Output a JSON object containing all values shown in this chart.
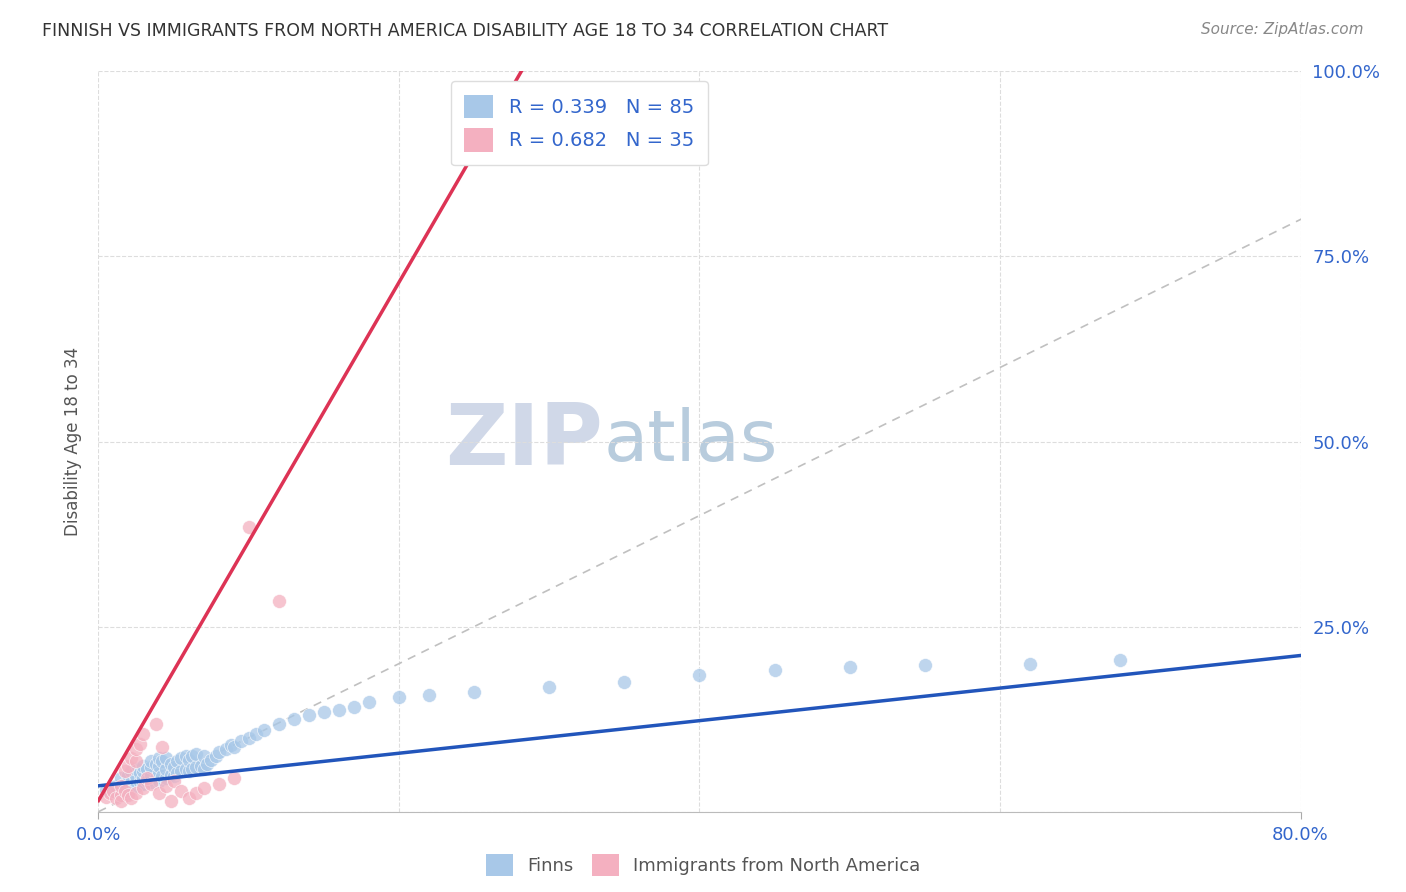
{
  "title": "FINNISH VS IMMIGRANTS FROM NORTH AMERICA DISABILITY AGE 18 TO 34 CORRELATION CHART",
  "source": "Source: ZipAtlas.com",
  "ylabel": "Disability Age 18 to 34",
  "xlim": [
    0.0,
    0.8
  ],
  "ylim": [
    0.0,
    1.0
  ],
  "finn_R": 0.339,
  "finn_N": 85,
  "immig_R": 0.682,
  "immig_N": 35,
  "blue_color": "#a8c8e8",
  "pink_color": "#f4b0c0",
  "blue_line_color": "#2255bb",
  "pink_line_color": "#dd3355",
  "legend_text_color": "#3366cc",
  "watermark_zip": "ZIP",
  "watermark_atlas": "atlas",
  "watermark_zip_color": "#d0d8e8",
  "watermark_atlas_color": "#b8ccdd",
  "finn_x": [
    0.005,
    0.01,
    0.012,
    0.015,
    0.015,
    0.018,
    0.02,
    0.02,
    0.022,
    0.022,
    0.025,
    0.025,
    0.025,
    0.025,
    0.028,
    0.028,
    0.03,
    0.03,
    0.03,
    0.03,
    0.032,
    0.032,
    0.035,
    0.035,
    0.035,
    0.035,
    0.038,
    0.038,
    0.04,
    0.04,
    0.04,
    0.04,
    0.042,
    0.042,
    0.045,
    0.045,
    0.045,
    0.048,
    0.048,
    0.05,
    0.05,
    0.052,
    0.052,
    0.055,
    0.055,
    0.058,
    0.058,
    0.06,
    0.06,
    0.062,
    0.062,
    0.065,
    0.065,
    0.068,
    0.07,
    0.07,
    0.072,
    0.075,
    0.078,
    0.08,
    0.085,
    0.088,
    0.09,
    0.095,
    0.1,
    0.105,
    0.11,
    0.12,
    0.13,
    0.14,
    0.15,
    0.16,
    0.17,
    0.18,
    0.2,
    0.22,
    0.25,
    0.3,
    0.35,
    0.4,
    0.45,
    0.5,
    0.55,
    0.62,
    0.68
  ],
  "finn_y": [
    0.03,
    0.028,
    0.035,
    0.032,
    0.045,
    0.038,
    0.025,
    0.05,
    0.04,
    0.055,
    0.035,
    0.042,
    0.048,
    0.058,
    0.04,
    0.052,
    0.038,
    0.045,
    0.055,
    0.062,
    0.042,
    0.058,
    0.04,
    0.05,
    0.06,
    0.068,
    0.045,
    0.065,
    0.042,
    0.052,
    0.062,
    0.072,
    0.048,
    0.068,
    0.045,
    0.058,
    0.072,
    0.05,
    0.065,
    0.048,
    0.06,
    0.052,
    0.068,
    0.055,
    0.072,
    0.058,
    0.075,
    0.055,
    0.07,
    0.058,
    0.075,
    0.06,
    0.078,
    0.062,
    0.058,
    0.075,
    0.065,
    0.07,
    0.075,
    0.08,
    0.085,
    0.09,
    0.088,
    0.095,
    0.1,
    0.105,
    0.11,
    0.118,
    0.125,
    0.13,
    0.135,
    0.138,
    0.142,
    0.148,
    0.155,
    0.158,
    0.162,
    0.168,
    0.175,
    0.185,
    0.192,
    0.195,
    0.198,
    0.2,
    0.205
  ],
  "immig_x": [
    0.005,
    0.008,
    0.01,
    0.012,
    0.015,
    0.015,
    0.015,
    0.018,
    0.018,
    0.02,
    0.02,
    0.022,
    0.022,
    0.025,
    0.025,
    0.025,
    0.028,
    0.03,
    0.03,
    0.032,
    0.035,
    0.038,
    0.04,
    0.042,
    0.045,
    0.048,
    0.05,
    0.055,
    0.06,
    0.065,
    0.07,
    0.08,
    0.09,
    0.1,
    0.12
  ],
  "immig_y": [
    0.02,
    0.025,
    0.028,
    0.018,
    0.022,
    0.035,
    0.015,
    0.028,
    0.055,
    0.022,
    0.062,
    0.018,
    0.072,
    0.025,
    0.068,
    0.085,
    0.092,
    0.032,
    0.105,
    0.045,
    0.038,
    0.118,
    0.025,
    0.088,
    0.035,
    0.015,
    0.042,
    0.028,
    0.018,
    0.025,
    0.032,
    0.038,
    0.045,
    0.385,
    0.285
  ]
}
